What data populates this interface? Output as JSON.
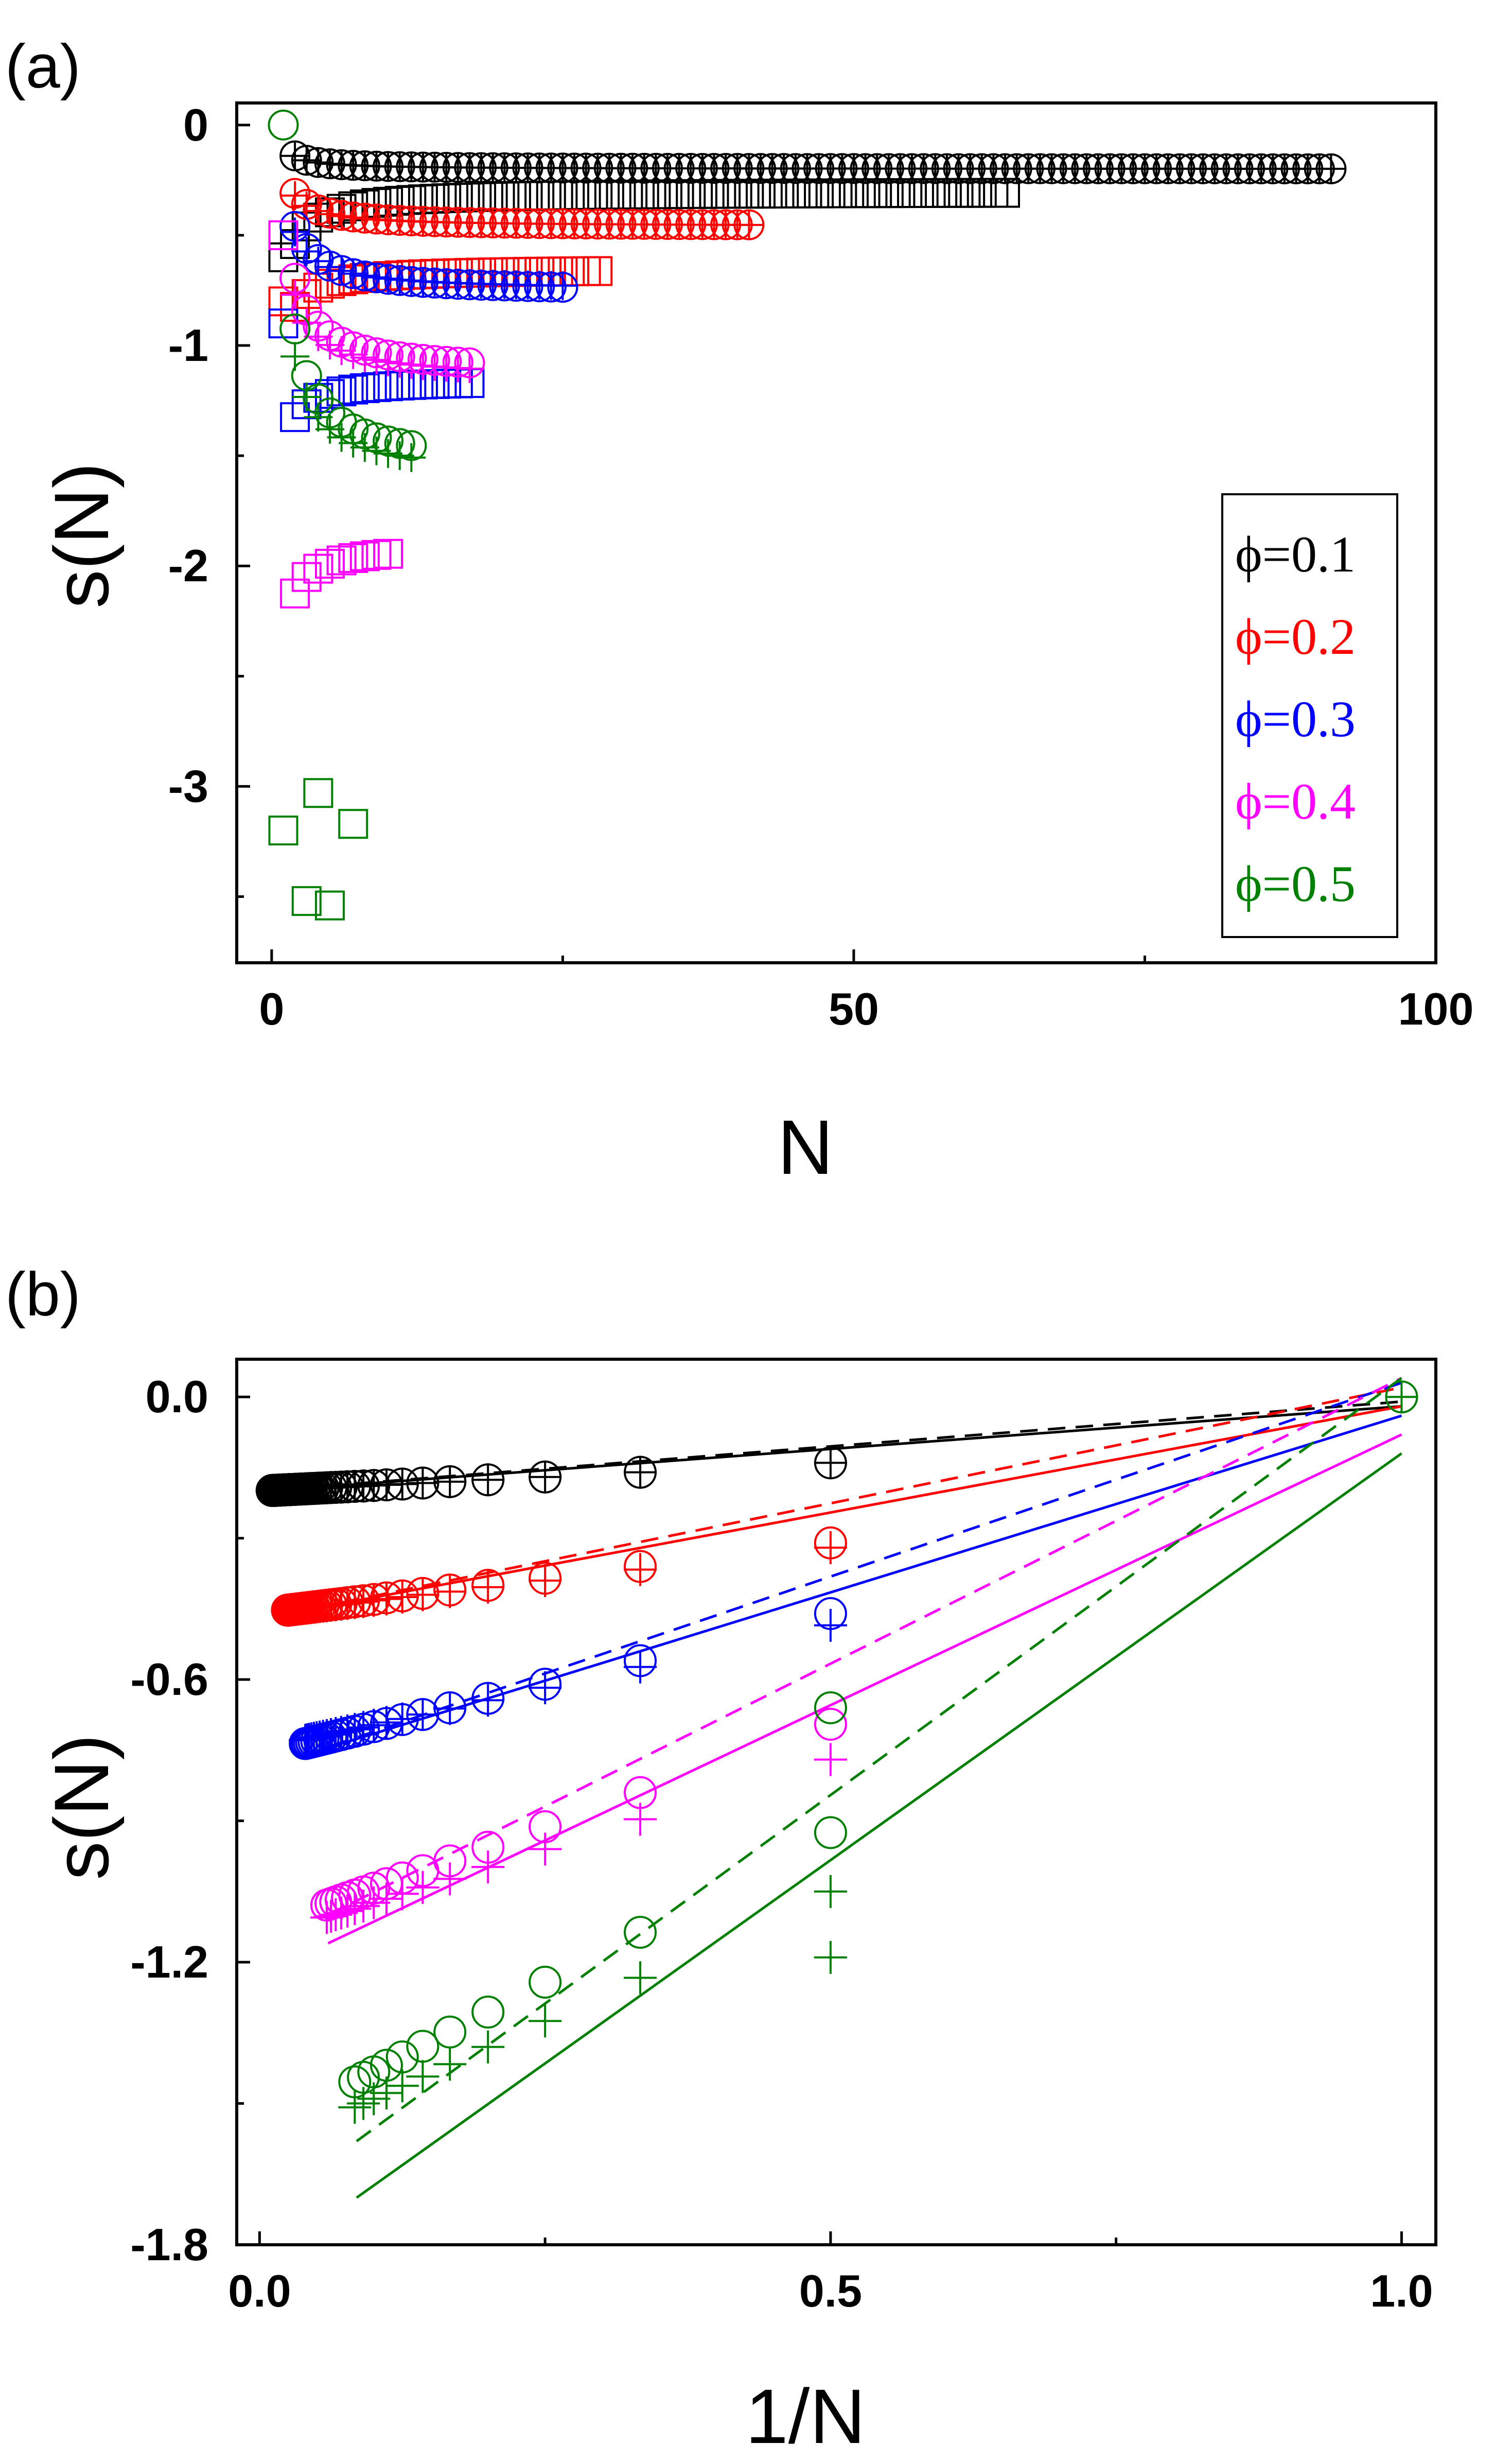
{
  "chart_data": [
    {
      "panel": "(a)",
      "type": "scatter",
      "xlabel": "N",
      "ylabel": "s(N)",
      "xlim": [
        -3,
        100
      ],
      "ylim": [
        -3.8,
        0.1
      ],
      "xticks": [
        0,
        50,
        100
      ],
      "yticks": [
        0,
        -1,
        -2,
        -3
      ],
      "legend": {
        "position": "right",
        "entries": [
          {
            "label": "ϕ=0.1",
            "color": "#000000"
          },
          {
            "label": "ϕ=0.2",
            "color": "#ff0000"
          },
          {
            "label": "ϕ=0.3",
            "color": "#0000ff"
          },
          {
            "label": "ϕ=0.4",
            "color": "#ff00ff"
          },
          {
            "label": "ϕ=0.5",
            "color": "#008000"
          }
        ]
      },
      "series": [
        {
          "name": "ϕ=0.1",
          "color": "#000000",
          "circles": {
            "n_max": 91,
            "s_inf": -0.2,
            "a": -0.2,
            "b": 0.12
          },
          "pluses": {
            "n_max": 91,
            "s_inf": -0.2,
            "a": -0.2,
            "b": 0.12
          },
          "squares": {
            "n_max": 63,
            "s_inf": -0.3,
            "a": -0.6,
            "b": 0.48
          }
        },
        {
          "name": "ϕ=0.2",
          "color": "#ff0000",
          "circles": {
            "n_max": 41,
            "s_inf": -0.46,
            "a": -0.46,
            "b": 0.3
          },
          "pluses": {
            "n_max": 41,
            "s_inf": -0.46,
            "a": -0.46,
            "b": 0.28
          },
          "squares": {
            "n_max": 28,
            "s_inf": -0.65,
            "a": -0.8,
            "b": 0.35
          }
        },
        {
          "name": "ϕ=0.3",
          "color": "#0000ff",
          "circles": {
            "n_max": 25,
            "s_inf": -0.76,
            "a": -0.76,
            "b": 0.6
          },
          "pluses": {
            "n_max": 25,
            "s_inf": -0.75,
            "a": -0.75,
            "b": 0.53
          },
          "squares": {
            "n_max": 17,
            "s_inf": -1.15,
            "a": -0.9,
            "b": 0.35
          }
        },
        {
          "name": "ϕ=0.4",
          "color": "#ff00ff",
          "circles": {
            "n_max": 17,
            "s_inf": -1.13,
            "a": -1.13,
            "b": 0.87
          },
          "pluses": {
            "n_max": 17,
            "s_inf": -1.15,
            "a": -1.15,
            "b": 0.76
          },
          "squares": {
            "n_max": 10,
            "s_inf": -1.9,
            "a": -0.5,
            "b": 0.45
          }
        },
        {
          "name": "ϕ=0.5",
          "color": "#008000",
          "circles": {
            "n_max": 12,
            "s_inf": -1.56,
            "a": -1.56,
            "b": 1.27
          },
          "pluses": {
            "n_max": 12,
            "s_inf": -1.6,
            "a": -1.6,
            "b": 1.1
          },
          "squares": {
            "points": [
              [
                1,
                -3.2
              ],
              [
                3,
                -3.52
              ],
              [
                4,
                -3.03
              ],
              [
                5,
                -3.54
              ],
              [
                7,
                -3.17
              ]
            ]
          }
        }
      ]
    },
    {
      "panel": "(b)",
      "type": "scatter",
      "xlabel": "1/N",
      "ylabel": "s(N)",
      "xlim": [
        -0.02,
        1.03
      ],
      "ylim": [
        -1.8,
        0.08
      ],
      "xticks": [
        0.0,
        0.5,
        1.0
      ],
      "xtick_labels": [
        "0.0",
        "0.5",
        "1.0"
      ],
      "yticks": [
        0.0,
        -0.6,
        -1.2,
        -1.8
      ],
      "ytick_labels": [
        "0.0",
        "-0.6",
        "-1.2",
        "-1.8"
      ],
      "series": [
        {
          "name": "ϕ=0.1",
          "color": "#000000",
          "circle_fit": {
            "a": -0.2,
            "b": 0.12
          },
          "plus_fit": {
            "a": -0.2,
            "b": 0.12
          },
          "n_max": 91,
          "solid_line": [
            [
              0.011,
              -0.199
            ],
            [
              1.0,
              -0.02
            ]
          ],
          "dashed_line": [
            [
              0.011,
              -0.198
            ],
            [
              1.0,
              -0.01
            ]
          ]
        },
        {
          "name": "ϕ=0.2",
          "color": "#ff0000",
          "circle_fit": {
            "a": -0.46,
            "b": 0.3
          },
          "plus_fit": {
            "a": -0.46,
            "b": 0.28
          },
          "n_max": 41,
          "solid_line": [
            [
              0.024,
              -0.46
            ],
            [
              1.0,
              -0.02
            ]
          ],
          "dashed_line": [
            [
              0.024,
              -0.46
            ],
            [
              1.0,
              0.02
            ]
          ]
        },
        {
          "name": "ϕ=0.3",
          "color": "#0000ff",
          "circle_fit": {
            "a": -0.76,
            "b": 0.6
          },
          "plus_fit": {
            "a": -0.75,
            "b": 0.53
          },
          "n_max": 25,
          "solid_line": [
            [
              0.04,
              -0.76
            ],
            [
              1.0,
              -0.04
            ]
          ],
          "dashed_line": [
            [
              0.04,
              -0.76
            ],
            [
              1.0,
              0.03
            ]
          ]
        },
        {
          "name": "ϕ=0.4",
          "color": "#ff00ff",
          "circle_fit": {
            "a": -1.13,
            "b": 0.87
          },
          "plus_fit": {
            "a": -1.15,
            "b": 0.76
          },
          "n_max": 17,
          "solid_line": [
            [
              0.06,
              -1.16
            ],
            [
              1.0,
              -0.08
            ]
          ],
          "dashed_line": [
            [
              0.06,
              -1.1
            ],
            [
              1.0,
              0.04
            ]
          ]
        },
        {
          "name": "ϕ=0.5",
          "color": "#008000",
          "circle_fit": {
            "a": -1.56,
            "b": 1.27
          },
          "plus_fit": {
            "a": -1.6,
            "b": 1.1
          },
          "n_max": 12,
          "solid_line": [
            [
              0.085,
              -1.7
            ],
            [
              1.0,
              -0.12
            ]
          ],
          "dashed_line": [
            [
              0.085,
              -1.58
            ],
            [
              1.0,
              0.04
            ]
          ],
          "extra_circles": [
            [
              0.5,
              -0.66
            ],
            [
              1.0,
              0.0
            ]
          ],
          "extra_pluses": [
            [
              0.5,
              -1.19
            ],
            [
              1.0,
              0.0
            ]
          ]
        }
      ]
    }
  ]
}
